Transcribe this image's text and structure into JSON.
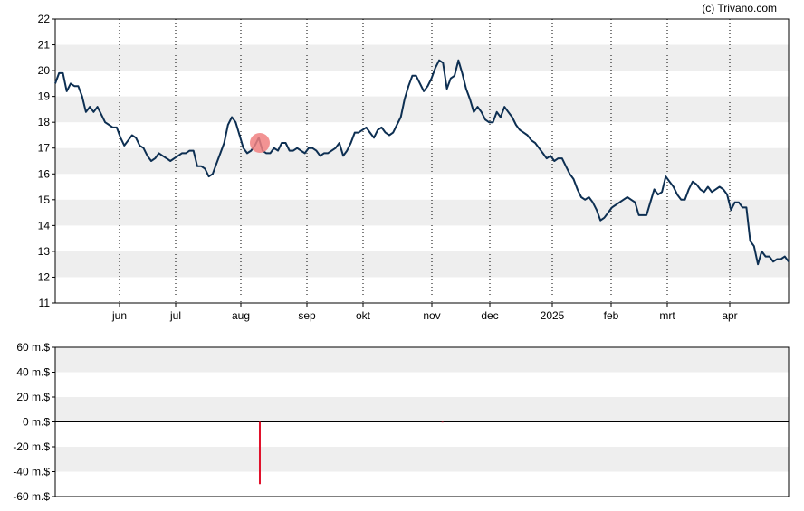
{
  "copyright": "(c) Trivano.com",
  "chart_data": [
    {
      "type": "line",
      "title": "",
      "xlabel": "",
      "ylabel": "",
      "ylim": [
        11,
        22
      ],
      "yticks": [
        "11",
        "12",
        "13",
        "14",
        "15",
        "16",
        "17",
        "18",
        "19",
        "20",
        "21",
        "22"
      ],
      "xticks": [
        "jun",
        "jul",
        "aug",
        "sep",
        "okt",
        "nov",
        "dec",
        "2025",
        "feb",
        "mrt",
        "apr"
      ],
      "grid": "vertical dotted lines at month ticks, horizontal alternating shaded bands",
      "line_color": "#0d2f52",
      "marker": {
        "label": "event",
        "x": 0.279,
        "y": 17.2,
        "color": "#f08080"
      },
      "series": [
        {
          "values": [
            19.5,
            19.9,
            19.9,
            19.2,
            19.5,
            19.4,
            19.4,
            19.0,
            18.4,
            18.6,
            18.4,
            18.6,
            18.3,
            18.0,
            17.9,
            17.8,
            17.8,
            17.4,
            17.1,
            17.3,
            17.5,
            17.4,
            17.1,
            17.0,
            16.7,
            16.5,
            16.6,
            16.8,
            16.7,
            16.6,
            16.5,
            16.6,
            16.7,
            16.8,
            16.8,
            16.9,
            16.9,
            16.3,
            16.3,
            16.2,
            15.9,
            16.0,
            16.4,
            16.8,
            17.2,
            17.9,
            18.2,
            18.0,
            17.5,
            17.0,
            16.8,
            16.9,
            17.1,
            17.4,
            16.9,
            16.8,
            16.8,
            17.0,
            16.9,
            17.2,
            17.2,
            16.9,
            16.9,
            17.0,
            16.9,
            16.8,
            17.0,
            17.0,
            16.9,
            16.7,
            16.8,
            16.8,
            16.9,
            17.0,
            17.2,
            16.7,
            16.9,
            17.2,
            17.6,
            17.6,
            17.7,
            17.8,
            17.6,
            17.4,
            17.7,
            17.8,
            17.6,
            17.5,
            17.6,
            17.9,
            18.2,
            18.9,
            19.4,
            19.8,
            19.8,
            19.5,
            19.2,
            19.4,
            19.7,
            20.1,
            20.4,
            20.3,
            19.3,
            19.7,
            19.8,
            20.4,
            19.9,
            19.3,
            18.9,
            18.4,
            18.6,
            18.4,
            18.1,
            18.0,
            18.0,
            18.4,
            18.2,
            18.6,
            18.4,
            18.2,
            17.9,
            17.7,
            17.6,
            17.5,
            17.3,
            17.2,
            17.0,
            16.8,
            16.6,
            16.7,
            16.5,
            16.6,
            16.6,
            16.3,
            16.0,
            15.8,
            15.4,
            15.1,
            15.0,
            15.1,
            14.9,
            14.6,
            14.2,
            14.3,
            14.5,
            14.7,
            14.8,
            14.9,
            15.0,
            15.1,
            15.0,
            14.9,
            14.4,
            14.4,
            14.4,
            14.9,
            15.4,
            15.2,
            15.3,
            15.9,
            15.7,
            15.5,
            15.2,
            15.0,
            15.0,
            15.4,
            15.7,
            15.6,
            15.4,
            15.3,
            15.5,
            15.3,
            15.4,
            15.5,
            15.4,
            15.2,
            14.6,
            14.9,
            14.9,
            14.7,
            14.7,
            13.4,
            13.2,
            12.5,
            13.0,
            12.8,
            12.8,
            12.6,
            12.7,
            12.7,
            12.8,
            12.6
          ]
        }
      ]
    },
    {
      "type": "bar",
      "title": "",
      "xlabel": "",
      "ylabel": "",
      "ylim": [
        -60,
        60
      ],
      "yticks": [
        "60 m.$",
        "40 m.$",
        "20 m.$",
        "0 m.$",
        "-20 m.$",
        "-40 m.$",
        "-60 m.$"
      ],
      "bar_color": "#e0102a",
      "bars": [
        {
          "x": 0.279,
          "value": -50
        },
        {
          "x": 0.528,
          "value": -0.5
        }
      ]
    }
  ]
}
